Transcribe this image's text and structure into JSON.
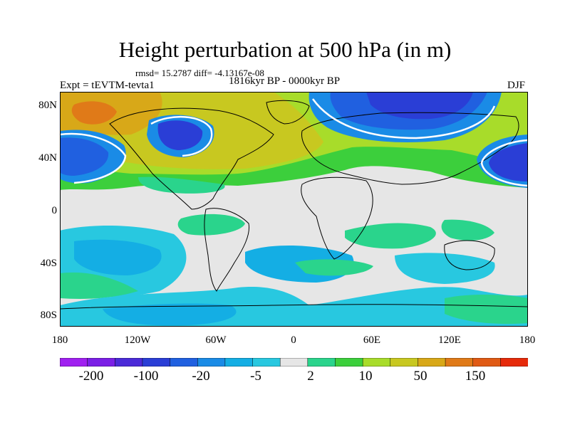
{
  "header": {
    "title": "Height perturbation at 500 hPa (in m)",
    "stats": "rmsd= 15.2787 diff= -4.13167e-08",
    "period": "1816kyr BP - 0000kyr BP",
    "experiment": "Expt = tEVTM-tevta1",
    "season": "DJF"
  },
  "axes": {
    "lat_labels": [
      "80N",
      "40N",
      "0",
      "40S",
      "80S"
    ],
    "lon_labels": [
      "180",
      "120W",
      "60W",
      "0",
      "60E",
      "120E",
      "180"
    ]
  },
  "colorbar": {
    "labels": [
      "-200",
      "-100",
      "-20",
      "-5",
      "2",
      "10",
      "50",
      "150"
    ],
    "colors": [
      "#a020f0",
      "#7b1fe6",
      "#4b2ad8",
      "#2a3ed6",
      "#2060e0",
      "#1a8be6",
      "#14aee4",
      "#28c8e0",
      "#e6e6e6",
      "#2ad48c",
      "#3ccf3c",
      "#a8dc2a",
      "#c8c820",
      "#d8a818",
      "#e07a18",
      "#e05a14",
      "#e62a0a"
    ]
  },
  "map_data": {
    "variable": "500 hPa geopotential height perturbation",
    "units": "m",
    "lon_range": [
      -180,
      180
    ],
    "lat_range": [
      -90,
      90
    ],
    "color_levels": [
      -200,
      -150,
      -100,
      -50,
      -20,
      -10,
      -5,
      -2,
      2,
      5,
      10,
      20,
      50,
      100,
      150,
      200
    ]
  }
}
